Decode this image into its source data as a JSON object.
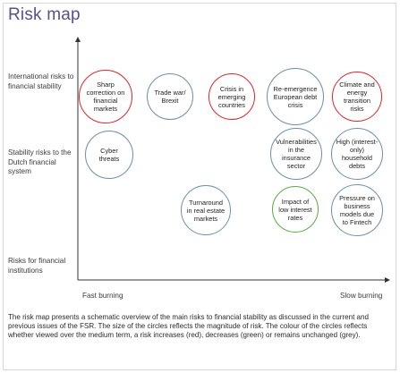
{
  "title": "Risk map",
  "rows": [
    "International risks to financial stability",
    "Stability risks to the Dutch financial system",
    "Risks for financial institutions"
  ],
  "axis": {
    "left": "Fast burning",
    "right": "Slow burning"
  },
  "bubbles": [
    {
      "label": "Sharp correction on financial markets",
      "status": "increase",
      "color": "#d9262c"
    },
    {
      "label": "Trade war/ Brexit",
      "status": "unchanged",
      "color": "#6b8fa8"
    },
    {
      "label": "Crisis in emerging countries",
      "status": "increase",
      "color": "#d9262c"
    },
    {
      "label": "Re-emergence European debt crisis",
      "status": "unchanged",
      "color": "#6b8fa8"
    },
    {
      "label": "Climate and energy transition risks",
      "status": "increase",
      "color": "#d9262c"
    },
    {
      "label": "Cyber threats",
      "status": "unchanged",
      "color": "#6b8fa8"
    },
    {
      "label": "Vulnerabilities in the insurance sector",
      "status": "unchanged",
      "color": "#6b8fa8"
    },
    {
      "label": "High (interest-only) household debts",
      "status": "unchanged",
      "color": "#6b8fa8"
    },
    {
      "label": "Turnaround in real estate markets",
      "status": "unchanged",
      "color": "#6b8fa8"
    },
    {
      "label": "Impact of low interest rates",
      "status": "decrease",
      "color": "#5aab3c"
    },
    {
      "label": "Pressure on business models due to Fintech",
      "status": "unchanged",
      "color": "#6b8fa8"
    }
  ],
  "caption": "The risk map presents a schematic overview of the main risks to financial stability as discussed in the current and previous issues of the FSR. The size of the circles reflects the magnitude of risk. The colour of the circles reflects whether viewed over the medium term, a risk increases (red), decreases (green) or remains unchanged (grey)."
}
